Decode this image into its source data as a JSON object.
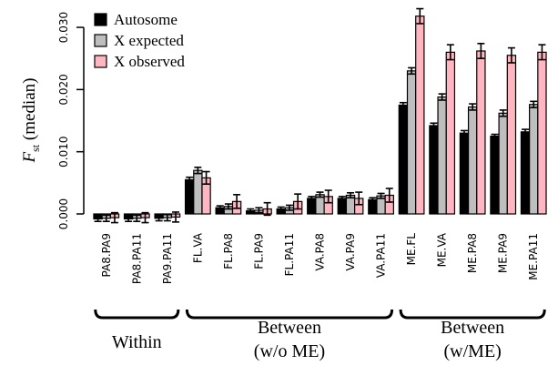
{
  "chart_data": {
    "type": "bar",
    "ylabel": {
      "main": "F",
      "sub": "st",
      "rest": " (median)"
    },
    "ylim": [
      -0.002,
      0.033
    ],
    "yticks": [
      "0.000",
      "0.010",
      "0.020",
      "0.030"
    ],
    "ytick_values": [
      0.0,
      0.01,
      0.02,
      0.03
    ],
    "categories": [
      "PA8.PA9",
      "PA8.PA11",
      "PA9.PA11",
      "FL.VA",
      "FL.PA8",
      "FL.PA9",
      "FL.PA11",
      "VA.PA8",
      "VA.PA9",
      "VA.PA11",
      "ME.FL",
      "ME.VA",
      "ME.PA8",
      "ME.PA9",
      "ME.PA11"
    ],
    "series": [
      {
        "name": "Autosome",
        "color": "#000000",
        "values": [
          -0.0008,
          -0.0008,
          -0.0007,
          0.0055,
          0.001,
          0.0005,
          0.0008,
          0.0025,
          0.0025,
          0.0023,
          0.0175,
          0.0142,
          0.013,
          0.0125,
          0.0132
        ],
        "err": [
          0.0004,
          0.0004,
          0.0004,
          0.0004,
          0.0003,
          0.0003,
          0.0003,
          0.0003,
          0.0003,
          0.0003,
          0.0004,
          0.0004,
          0.0004,
          0.0003,
          0.0004
        ]
      },
      {
        "name": "X expected",
        "color": "#bebebe",
        "values": [
          -0.0007,
          -0.0007,
          -0.0006,
          0.007,
          0.0012,
          0.0006,
          0.001,
          0.0031,
          0.003,
          0.0029,
          0.023,
          0.0188,
          0.0172,
          0.0162,
          0.0176
        ],
        "err": [
          0.0005,
          0.0005,
          0.0005,
          0.0005,
          0.0004,
          0.0004,
          0.0004,
          0.0004,
          0.0004,
          0.0004,
          0.0005,
          0.0005,
          0.0005,
          0.0005,
          0.0005
        ]
      },
      {
        "name": "X observed",
        "color": "#ffb6c1",
        "values": [
          -0.0006,
          -0.0006,
          -0.0005,
          0.0058,
          0.002,
          0.0008,
          0.002,
          0.0028,
          0.0025,
          0.003,
          0.0318,
          0.026,
          0.0262,
          0.0255,
          0.026
        ],
        "err": [
          0.0008,
          0.0008,
          0.0008,
          0.001,
          0.0011,
          0.001,
          0.0012,
          0.001,
          0.001,
          0.0011,
          0.0012,
          0.0012,
          0.0012,
          0.0012,
          0.0012
        ]
      }
    ],
    "groups": [
      {
        "lines": [
          "Within"
        ],
        "categories": [
          "PA8.PA9",
          "PA8.PA11",
          "PA9.PA11"
        ]
      },
      {
        "lines": [
          "Between",
          "(w/o ME)"
        ],
        "categories": [
          "FL.VA",
          "VA.PA11"
        ]
      },
      {
        "lines": [
          "Between",
          "(w/ME)"
        ],
        "categories": [
          "ME.FL",
          "ME.PA11"
        ]
      }
    ],
    "legend_position": "top-left"
  }
}
